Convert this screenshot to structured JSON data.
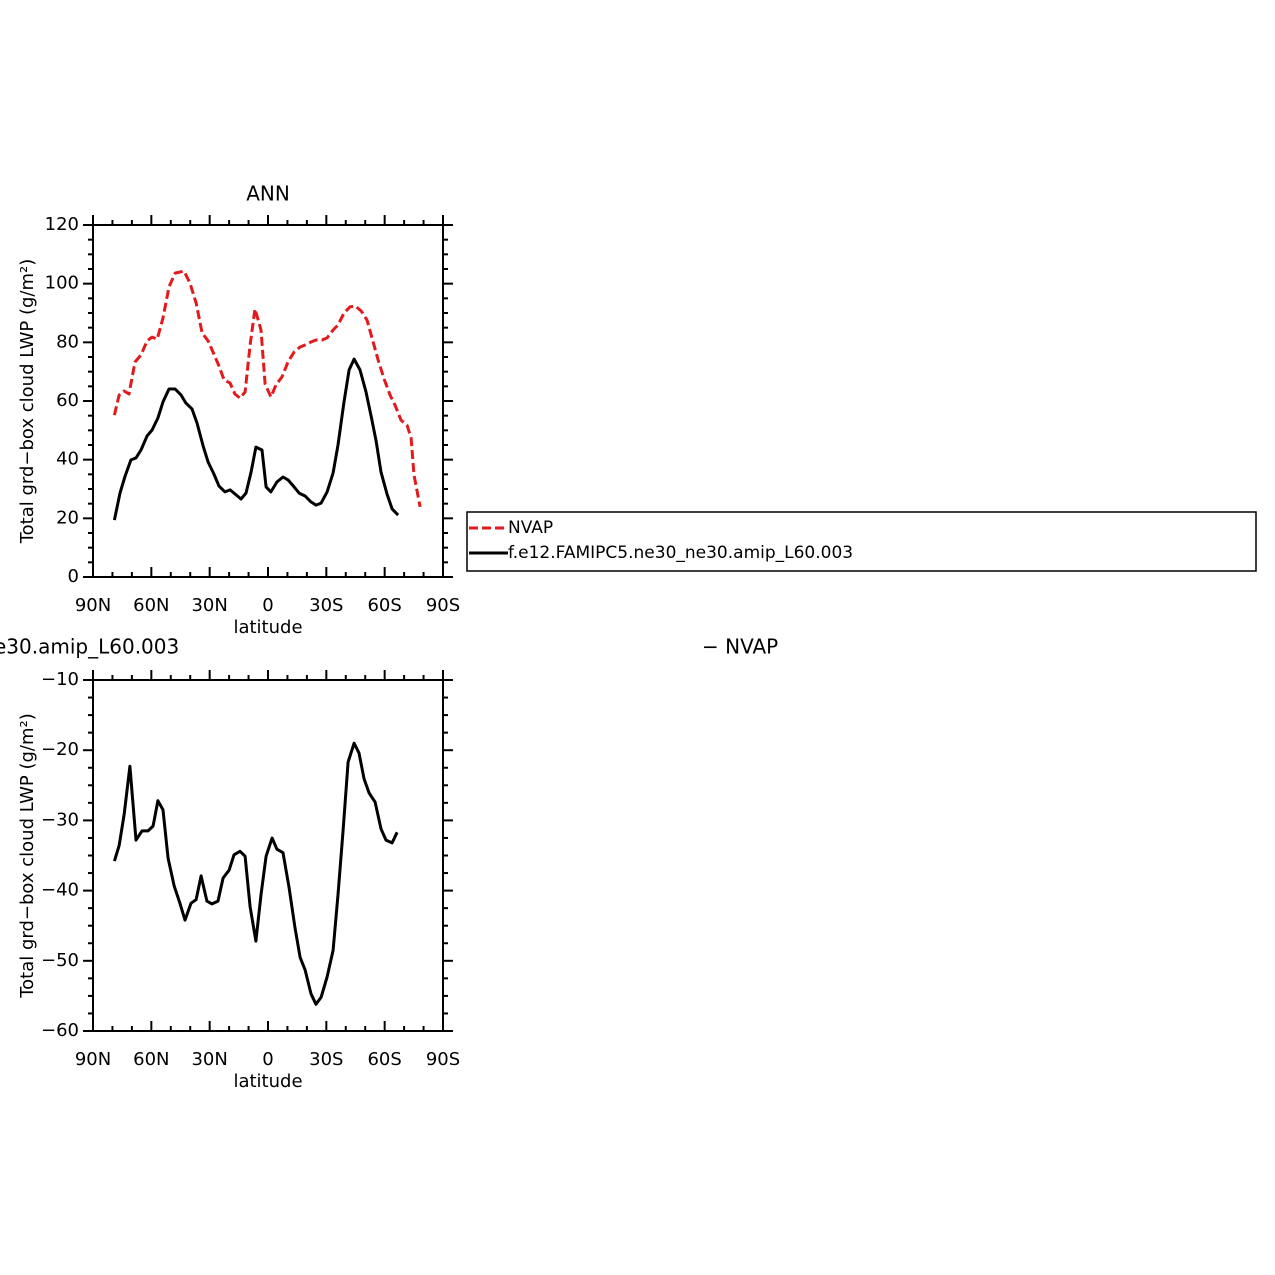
{
  "chart_data": [
    {
      "type": "line",
      "title": "ANN",
      "xlabel": "latitude",
      "ylabel": "Total grd−box cloud LWP (g/m²)",
      "xlim": [
        90,
        -90
      ],
      "ylim": [
        0,
        120
      ],
      "xticks": [
        {
          "value": 90,
          "label": "90N"
        },
        {
          "value": 60,
          "label": "60N"
        },
        {
          "value": 30,
          "label": "30N"
        },
        0,
        {
          "value": -30,
          "label": "30S"
        },
        {
          "value": -60,
          "label": "60S"
        },
        {
          "value": -90,
          "label": "90S"
        }
      ],
      "yticks": [
        0,
        20,
        40,
        60,
        80,
        100,
        120
      ],
      "legend": "right",
      "series": [
        {
          "name": "NVAP",
          "color": "#e31a1c",
          "dash": true,
          "x": [
            79,
            76.6,
            74,
            71.5,
            68.4,
            65.3,
            62.2,
            59.6,
            57,
            54,
            50.9,
            47.8,
            43.2,
            40.1,
            37,
            33.9,
            30.8,
            28.3,
            25.2,
            22.6,
            19.5,
            17,
            14.4,
            11.8,
            9.2,
            6.7,
            3.6,
            1.5,
            -1.5,
            -4.1,
            -7.2,
            -10.3,
            -13.4,
            -16.5,
            -19.1,
            -22.1,
            -24.7,
            -27.8,
            -30.4,
            -33.5,
            -36,
            -39.1,
            -42.2,
            -44.8,
            -47.9,
            -50.9,
            -53.5,
            -56.6,
            -59.7,
            -62.8,
            -65.3,
            -68.4,
            -71.5,
            -73.6,
            -75.1,
            -78.2
          ],
          "values": [
            55.2,
            62,
            63.4,
            62.4,
            73.3,
            75.7,
            80.5,
            81.8,
            81.1,
            88.3,
            98.9,
            103.6,
            104.3,
            100.2,
            93.4,
            83.2,
            80.5,
            76.7,
            71.9,
            67.2,
            66.1,
            62.4,
            61,
            63.1,
            79.1,
            91.4,
            84.2,
            65.8,
            61.4,
            65.5,
            68.2,
            73.3,
            76.7,
            78.4,
            79.1,
            80.1,
            80.8,
            80.8,
            81.5,
            84.2,
            85.9,
            90,
            92.1,
            92.4,
            90.7,
            87.6,
            81.5,
            74,
            67.5,
            62,
            58.6,
            53.5,
            51.8,
            47.4,
            34.8,
            23.9
          ]
        },
        {
          "name": "f.e12.FAMIPC5.ne30_ne30.amip_L60.003",
          "color": "#000000",
          "dash": false,
          "x": [
            79,
            76.1,
            73.5,
            70.5,
            67.9,
            65.3,
            62.2,
            59.6,
            56.6,
            54,
            50.9,
            47.8,
            44.7,
            42.2,
            39.1,
            36.5,
            33.4,
            30.8,
            27.8,
            25.2,
            22.1,
            19.5,
            16.4,
            13.9,
            11.3,
            8.7,
            6.2,
            3.1,
            1,
            -1.5,
            -4.6,
            -7.7,
            -10.3,
            -13.4,
            -16,
            -19.1,
            -22.1,
            -24.7,
            -27.3,
            -30.4,
            -33.5,
            -36,
            -39.1,
            -41.7,
            -44.3,
            -47.3,
            -50.4,
            -53,
            -55.6,
            -58.1,
            -61.2,
            -63.8,
            -66.9
          ],
          "values": [
            19.4,
            28.6,
            34.4,
            39.9,
            40.6,
            43.3,
            48.1,
            50.1,
            54.2,
            59.7,
            64.1,
            64.1,
            62,
            59.3,
            57.3,
            52.5,
            44.7,
            39.2,
            35.1,
            31,
            29,
            29.7,
            28,
            26.6,
            28.6,
            35.8,
            44.3,
            43.3,
            30.7,
            29,
            32.4,
            34.1,
            33.1,
            30.7,
            28.6,
            27.6,
            25.6,
            24.5,
            25.2,
            29,
            35.5,
            45,
            59.7,
            70.6,
            74.3,
            70.6,
            63.1,
            54.9,
            46.4,
            35.8,
            28.3,
            23.2,
            21.1
          ]
        }
      ]
    },
    {
      "type": "line",
      "titles": [
        "e30.amip_L60.003",
        "− NVAP"
      ],
      "xlabel": "latitude",
      "ylabel": "Total grd−box cloud LWP (g/m²)",
      "xlim": [
        90,
        -90
      ],
      "ylim": [
        -60,
        -10
      ],
      "xticks": [
        {
          "value": 90,
          "label": "90N"
        },
        {
          "value": 60,
          "label": "60N"
        },
        {
          "value": 30,
          "label": "30N"
        },
        0,
        {
          "value": -30,
          "label": "30S"
        },
        {
          "value": -60,
          "label": "60S"
        },
        {
          "value": -90,
          "label": "90S"
        }
      ],
      "yticks": [
        {
          "value": -60,
          "label": "−60"
        },
        {
          "value": -50,
          "label": "−50"
        },
        {
          "value": -40,
          "label": "−40"
        },
        {
          "value": -30,
          "label": "−30"
        },
        {
          "value": -20,
          "label": "−20"
        },
        {
          "value": -10,
          "label": "−10"
        }
      ],
      "series": [
        {
          "color": "#000000",
          "dash": false,
          "x": [
            79,
            76.6,
            74,
            71,
            67.9,
            64.8,
            61.7,
            59.1,
            56.6,
            54,
            51.4,
            48.3,
            45.3,
            42.7,
            39.6,
            37,
            34.4,
            31.4,
            28.8,
            25.7,
            23.1,
            20,
            17.5,
            14.4,
            11.8,
            9.2,
            6.2,
            3.6,
            1,
            -2.1,
            -4.6,
            -7.7,
            -10.8,
            -13.9,
            -16.5,
            -19.1,
            -22.1,
            -24.7,
            -27.3,
            -30.4,
            -33.5,
            -36,
            -38.6,
            -41.2,
            -44.3,
            -46.8,
            -49.4,
            -52,
            -55.1,
            -58.1,
            -60.7,
            -63.8,
            -66.4
          ],
          "values": [
            -35.8,
            -33.6,
            -29.2,
            -22.3,
            -32.8,
            -31.5,
            -31.5,
            -30.8,
            -27.2,
            -28.5,
            -35.4,
            -39.3,
            -41.8,
            -44.2,
            -41.8,
            -41.3,
            -37.9,
            -41.5,
            -41.9,
            -41.5,
            -38.2,
            -37.1,
            -34.9,
            -34.4,
            -35.1,
            -42.3,
            -47.2,
            -40.6,
            -35.1,
            -32.5,
            -34.1,
            -34.6,
            -39.5,
            -45.3,
            -49.5,
            -51.3,
            -54.7,
            -56.2,
            -55.2,
            -52.3,
            -48.5,
            -40.6,
            -31.4,
            -21.7,
            -19,
            -20.4,
            -24.1,
            -26.1,
            -27.4,
            -31.2,
            -32.8,
            -33.2,
            -31.7
          ]
        }
      ]
    }
  ]
}
